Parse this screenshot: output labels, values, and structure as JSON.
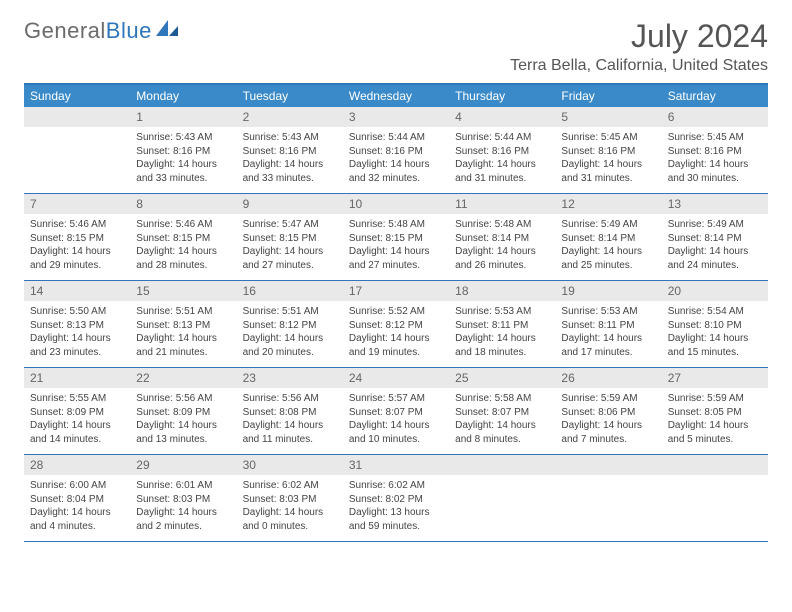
{
  "logo": {
    "text_gray": "General",
    "text_blue": "Blue"
  },
  "title": "July 2024",
  "location": "Terra Bella, California, United States",
  "colors": {
    "header_bg": "#3a8ac9",
    "header_border": "#2f76bb",
    "daynum_bg": "#e9e9e9",
    "text_gray": "#6b6b6b",
    "text_blue": "#2f76bb"
  },
  "weekdays": [
    "Sunday",
    "Monday",
    "Tuesday",
    "Wednesday",
    "Thursday",
    "Friday",
    "Saturday"
  ],
  "weeks": [
    [
      {
        "num": "",
        "lines": []
      },
      {
        "num": "1",
        "lines": [
          "Sunrise: 5:43 AM",
          "Sunset: 8:16 PM",
          "Daylight: 14 hours",
          "and 33 minutes."
        ]
      },
      {
        "num": "2",
        "lines": [
          "Sunrise: 5:43 AM",
          "Sunset: 8:16 PM",
          "Daylight: 14 hours",
          "and 33 minutes."
        ]
      },
      {
        "num": "3",
        "lines": [
          "Sunrise: 5:44 AM",
          "Sunset: 8:16 PM",
          "Daylight: 14 hours",
          "and 32 minutes."
        ]
      },
      {
        "num": "4",
        "lines": [
          "Sunrise: 5:44 AM",
          "Sunset: 8:16 PM",
          "Daylight: 14 hours",
          "and 31 minutes."
        ]
      },
      {
        "num": "5",
        "lines": [
          "Sunrise: 5:45 AM",
          "Sunset: 8:16 PM",
          "Daylight: 14 hours",
          "and 31 minutes."
        ]
      },
      {
        "num": "6",
        "lines": [
          "Sunrise: 5:45 AM",
          "Sunset: 8:16 PM",
          "Daylight: 14 hours",
          "and 30 minutes."
        ]
      }
    ],
    [
      {
        "num": "7",
        "lines": [
          "Sunrise: 5:46 AM",
          "Sunset: 8:15 PM",
          "Daylight: 14 hours",
          "and 29 minutes."
        ]
      },
      {
        "num": "8",
        "lines": [
          "Sunrise: 5:46 AM",
          "Sunset: 8:15 PM",
          "Daylight: 14 hours",
          "and 28 minutes."
        ]
      },
      {
        "num": "9",
        "lines": [
          "Sunrise: 5:47 AM",
          "Sunset: 8:15 PM",
          "Daylight: 14 hours",
          "and 27 minutes."
        ]
      },
      {
        "num": "10",
        "lines": [
          "Sunrise: 5:48 AM",
          "Sunset: 8:15 PM",
          "Daylight: 14 hours",
          "and 27 minutes."
        ]
      },
      {
        "num": "11",
        "lines": [
          "Sunrise: 5:48 AM",
          "Sunset: 8:14 PM",
          "Daylight: 14 hours",
          "and 26 minutes."
        ]
      },
      {
        "num": "12",
        "lines": [
          "Sunrise: 5:49 AM",
          "Sunset: 8:14 PM",
          "Daylight: 14 hours",
          "and 25 minutes."
        ]
      },
      {
        "num": "13",
        "lines": [
          "Sunrise: 5:49 AM",
          "Sunset: 8:14 PM",
          "Daylight: 14 hours",
          "and 24 minutes."
        ]
      }
    ],
    [
      {
        "num": "14",
        "lines": [
          "Sunrise: 5:50 AM",
          "Sunset: 8:13 PM",
          "Daylight: 14 hours",
          "and 23 minutes."
        ]
      },
      {
        "num": "15",
        "lines": [
          "Sunrise: 5:51 AM",
          "Sunset: 8:13 PM",
          "Daylight: 14 hours",
          "and 21 minutes."
        ]
      },
      {
        "num": "16",
        "lines": [
          "Sunrise: 5:51 AM",
          "Sunset: 8:12 PM",
          "Daylight: 14 hours",
          "and 20 minutes."
        ]
      },
      {
        "num": "17",
        "lines": [
          "Sunrise: 5:52 AM",
          "Sunset: 8:12 PM",
          "Daylight: 14 hours",
          "and 19 minutes."
        ]
      },
      {
        "num": "18",
        "lines": [
          "Sunrise: 5:53 AM",
          "Sunset: 8:11 PM",
          "Daylight: 14 hours",
          "and 18 minutes."
        ]
      },
      {
        "num": "19",
        "lines": [
          "Sunrise: 5:53 AM",
          "Sunset: 8:11 PM",
          "Daylight: 14 hours",
          "and 17 minutes."
        ]
      },
      {
        "num": "20",
        "lines": [
          "Sunrise: 5:54 AM",
          "Sunset: 8:10 PM",
          "Daylight: 14 hours",
          "and 15 minutes."
        ]
      }
    ],
    [
      {
        "num": "21",
        "lines": [
          "Sunrise: 5:55 AM",
          "Sunset: 8:09 PM",
          "Daylight: 14 hours",
          "and 14 minutes."
        ]
      },
      {
        "num": "22",
        "lines": [
          "Sunrise: 5:56 AM",
          "Sunset: 8:09 PM",
          "Daylight: 14 hours",
          "and 13 minutes."
        ]
      },
      {
        "num": "23",
        "lines": [
          "Sunrise: 5:56 AM",
          "Sunset: 8:08 PM",
          "Daylight: 14 hours",
          "and 11 minutes."
        ]
      },
      {
        "num": "24",
        "lines": [
          "Sunrise: 5:57 AM",
          "Sunset: 8:07 PM",
          "Daylight: 14 hours",
          "and 10 minutes."
        ]
      },
      {
        "num": "25",
        "lines": [
          "Sunrise: 5:58 AM",
          "Sunset: 8:07 PM",
          "Daylight: 14 hours",
          "and 8 minutes."
        ]
      },
      {
        "num": "26",
        "lines": [
          "Sunrise: 5:59 AM",
          "Sunset: 8:06 PM",
          "Daylight: 14 hours",
          "and 7 minutes."
        ]
      },
      {
        "num": "27",
        "lines": [
          "Sunrise: 5:59 AM",
          "Sunset: 8:05 PM",
          "Daylight: 14 hours",
          "and 5 minutes."
        ]
      }
    ],
    [
      {
        "num": "28",
        "lines": [
          "Sunrise: 6:00 AM",
          "Sunset: 8:04 PM",
          "Daylight: 14 hours",
          "and 4 minutes."
        ]
      },
      {
        "num": "29",
        "lines": [
          "Sunrise: 6:01 AM",
          "Sunset: 8:03 PM",
          "Daylight: 14 hours",
          "and 2 minutes."
        ]
      },
      {
        "num": "30",
        "lines": [
          "Sunrise: 6:02 AM",
          "Sunset: 8:03 PM",
          "Daylight: 14 hours",
          "and 0 minutes."
        ]
      },
      {
        "num": "31",
        "lines": [
          "Sunrise: 6:02 AM",
          "Sunset: 8:02 PM",
          "Daylight: 13 hours",
          "and 59 minutes."
        ]
      },
      {
        "num": "",
        "lines": []
      },
      {
        "num": "",
        "lines": []
      },
      {
        "num": "",
        "lines": []
      }
    ]
  ]
}
